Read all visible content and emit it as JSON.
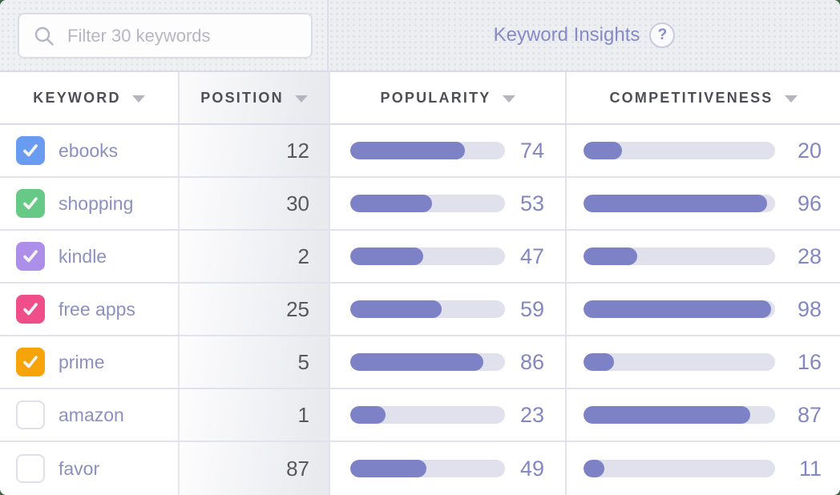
{
  "filter": {
    "placeholder": "Filter 30 keywords",
    "icon": "search-icon"
  },
  "panel": {
    "title": "Keyword Insights",
    "help_icon": "?"
  },
  "columns": {
    "keyword": "KEYWORD",
    "position": "POSITION",
    "popularity": "POPULARITY",
    "competitiveness": "COMPETITIVENESS"
  },
  "colors": {
    "bar_fill": "#7d81c6",
    "bar_track": "#e0e1ec",
    "accent_text": "#8387c1",
    "header_text": "#4d4e56",
    "keyword_text": "#8c90bf",
    "checkbox_blue": "#699bf0",
    "checkbox_green": "#66c985",
    "checkbox_purple": "#ad8fe9",
    "checkbox_pink": "#ef4e88",
    "checkbox_orange": "#f6a409"
  },
  "rows": [
    {
      "keyword": "ebooks",
      "checked": true,
      "checkbox_color": "#699bf0",
      "position": "12",
      "popularity": "74",
      "competitiveness": "20"
    },
    {
      "keyword": "shopping",
      "checked": true,
      "checkbox_color": "#66c985",
      "position": "30",
      "popularity": "53",
      "competitiveness": "96"
    },
    {
      "keyword": "kindle",
      "checked": true,
      "checkbox_color": "#ad8fe9",
      "position": "2",
      "popularity": "47",
      "competitiveness": "28"
    },
    {
      "keyword": "free apps",
      "checked": true,
      "checkbox_color": "#ef4e88",
      "position": "25",
      "popularity": "59",
      "competitiveness": "98"
    },
    {
      "keyword": "prime",
      "checked": true,
      "checkbox_color": "#f6a409",
      "position": "5",
      "popularity": "86",
      "competitiveness": "16"
    },
    {
      "keyword": "amazon",
      "checked": false,
      "checkbox_color": "#ffffff",
      "position": "1",
      "popularity": "23",
      "competitiveness": "87"
    },
    {
      "keyword": "favor",
      "checked": false,
      "checkbox_color": "#ffffff",
      "position": "87",
      "popularity": "49",
      "competitiveness": "11"
    }
  ]
}
